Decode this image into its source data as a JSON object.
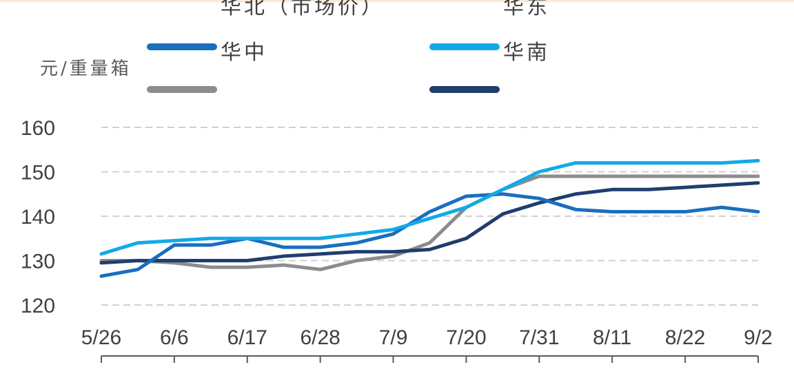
{
  "chart_data": {
    "type": "line",
    "y_label": "元/重量箱",
    "categories": [
      "5/26",
      null,
      "6/6",
      null,
      "6/17",
      null,
      "6/28",
      null,
      "7/9",
      null,
      "7/20",
      null,
      "7/31",
      null,
      "8/11",
      null,
      "8/22",
      null,
      "9/2"
    ],
    "ylim": [
      120,
      160
    ],
    "yticks": [
      120,
      130,
      140,
      150,
      160
    ],
    "grid": true,
    "series": [
      {
        "name": "华北（市场价）",
        "color": "#8c8c8c",
        "values": [
          130,
          130,
          129.5,
          128.5,
          128.5,
          129,
          128,
          130,
          131,
          134,
          142,
          146,
          149,
          149,
          149,
          149,
          149,
          149,
          149
        ]
      },
      {
        "name": "华东",
        "color": "#1f3e6e",
        "values": [
          129.5,
          130,
          130,
          130,
          130,
          131,
          131.5,
          132,
          132,
          132.5,
          135,
          140.5,
          143,
          145,
          146,
          146,
          146.5,
          147,
          147.5
        ]
      },
      {
        "name": "华中",
        "color": "#1a6ec0",
        "values": [
          126.5,
          128,
          133.5,
          133.5,
          135,
          133,
          133,
          134,
          136,
          141,
          144.5,
          145,
          144,
          141.5,
          141,
          141,
          141,
          142,
          141
        ]
      },
      {
        "name": "华南",
        "color": "#12a9e8",
        "values": [
          131.5,
          134,
          134.5,
          135,
          135,
          135,
          135,
          136,
          137,
          139.5,
          142,
          146,
          150,
          152,
          152,
          152,
          152,
          152,
          152.5
        ]
      }
    ]
  }
}
